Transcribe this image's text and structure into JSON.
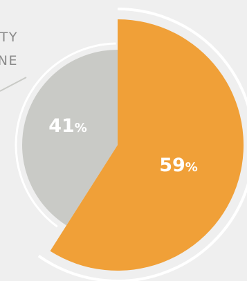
{
  "callout": {
    "line1": "TY",
    "line2": "NE"
  },
  "chart_data": {
    "type": "pie",
    "slices": [
      {
        "value": 59,
        "label": "59%",
        "color": "#f0a038"
      },
      {
        "value": 41,
        "label": "41%",
        "color": "#c9cac6"
      }
    ],
    "colors": {
      "background": "#efefef",
      "ring": "#ffffff",
      "label_text": "#ffffff",
      "callout_line": "#c9cac6"
    }
  }
}
